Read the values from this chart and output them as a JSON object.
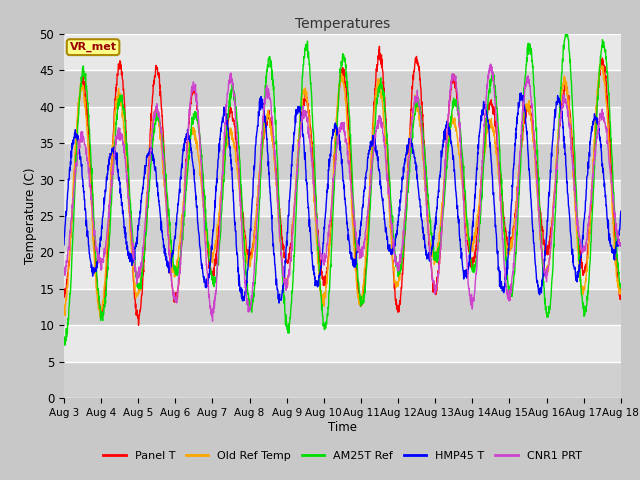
{
  "title": "Temperatures",
  "xlabel": "Time",
  "ylabel": "Temperature (C)",
  "ylim": [
    0,
    50
  ],
  "yticks": [
    0,
    5,
    10,
    15,
    20,
    25,
    30,
    35,
    40,
    45,
    50
  ],
  "num_days": 15,
  "points_per_day": 144,
  "annotation": "VR_met",
  "fig_bg_color": "#c8c8c8",
  "plot_bg_color": "#e8e8e8",
  "alt_bg_color": "#d0d0d0",
  "series": [
    {
      "label": "Panel T",
      "color": "#ff0000",
      "lw": 1.0,
      "amp": 13.5,
      "mid": 28,
      "phase": 0.0,
      "trend_amp": 3.0,
      "min_trend": 0.0
    },
    {
      "label": "Old Ref Temp",
      "color": "#ffa500",
      "lw": 1.0,
      "amp": 12.0,
      "mid": 27,
      "phase": 0.02,
      "trend_amp": 3.0,
      "min_trend": 0.0
    },
    {
      "label": "AM25T Ref",
      "color": "#00dd00",
      "lw": 1.0,
      "amp": 15.0,
      "mid": 27,
      "phase": -0.03,
      "trend_amp": 4.0,
      "min_trend": 0.0
    },
    {
      "label": "HMP45 T",
      "color": "#0000ff",
      "lw": 1.0,
      "amp": 10.5,
      "mid": 26,
      "phase": 0.18,
      "trend_amp": 2.5,
      "min_trend": 0.0
    },
    {
      "label": "CNR1 PRT",
      "color": "#cc44cc",
      "lw": 1.0,
      "amp": 12.5,
      "mid": 27,
      "phase": 0.01,
      "trend_amp": 3.0,
      "min_trend": 0.0
    }
  ],
  "x_tick_labels": [
    "Aug 3",
    "Aug 4",
    "Aug 5",
    "Aug 6",
    "Aug 7",
    "Aug 8",
    "Aug 9",
    "Aug 10",
    "Aug 11",
    "Aug 12",
    "Aug 13",
    "Aug 14",
    "Aug 15",
    "Aug 16",
    "Aug 17",
    "Aug 18"
  ],
  "figsize": [
    6.4,
    4.8
  ],
  "dpi": 100
}
